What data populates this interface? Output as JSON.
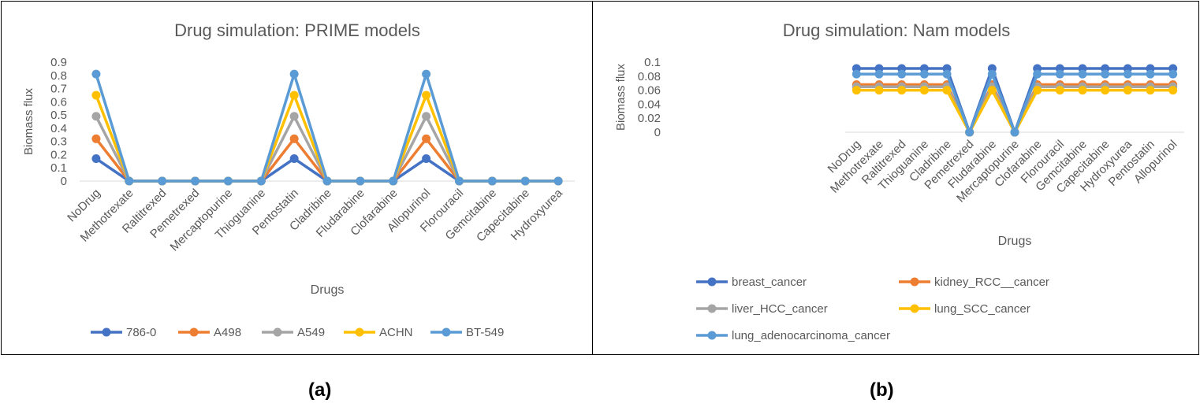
{
  "chart_data": [
    {
      "type": "line",
      "title": "Drug  simulation: PRIME models",
      "xlabel": "Drugs",
      "ylabel": "Biomass flux",
      "ylim": [
        0,
        0.9
      ],
      "yticks": [
        "0",
        "0.1",
        "0.2",
        "0.3",
        "0.4",
        "0.5",
        "0.6",
        "0.7",
        "0.8",
        "0.9"
      ],
      "grid": false,
      "legend_position": "bottom",
      "categories": [
        "NoDrug",
        "Methotrexate",
        "Raltitrexed",
        "Pemetrexed",
        "Mercaptopurine",
        "Thioguanine",
        "Pentostatin",
        "Cladribine",
        "Fludarabine",
        "Clofarabine",
        "Allopurinol",
        "Florouracil",
        "Gemcitabine",
        "Capecitabine",
        "Hydroxyurea"
      ],
      "series": [
        {
          "name": "786-0",
          "color": "#4472C4",
          "values": [
            0.17,
            0,
            0,
            0,
            0,
            0,
            0.17,
            0,
            0,
            0,
            0.17,
            0,
            0,
            0,
            0
          ]
        },
        {
          "name": "A498",
          "color": "#ED7D31",
          "values": [
            0.32,
            0,
            0,
            0,
            0,
            0,
            0.32,
            0,
            0,
            0,
            0.32,
            0,
            0,
            0,
            0
          ]
        },
        {
          "name": "A549",
          "color": "#A5A5A5",
          "values": [
            0.49,
            0,
            0,
            0,
            0,
            0,
            0.49,
            0,
            0,
            0,
            0.49,
            0,
            0,
            0,
            0
          ]
        },
        {
          "name": "ACHN",
          "color": "#FFC000",
          "values": [
            0.65,
            0,
            0,
            0,
            0,
            0,
            0.65,
            0,
            0,
            0,
            0.65,
            0,
            0,
            0,
            0
          ]
        },
        {
          "name": "BT-549",
          "color": "#5B9BD5",
          "values": [
            0.81,
            0,
            0,
            0,
            0,
            0,
            0.81,
            0,
            0,
            0,
            0.81,
            0,
            0,
            0,
            0
          ]
        }
      ]
    },
    {
      "type": "line",
      "title": "Drug simulation: Nam models",
      "xlabel": "Drugs",
      "ylabel": "Biomass flux",
      "ylim": [
        0,
        0.1
      ],
      "yticks": [
        "0",
        "0.02",
        "0.04",
        "0.06",
        "0.08",
        "0.1"
      ],
      "grid": false,
      "legend_position": "bottom",
      "categories": [
        "NoDrug",
        "Methotrexate",
        "Raltitrexed",
        "Thioguanine",
        "Cladribine",
        "Pemetrexed",
        "Fludarabine",
        "Mercaptopurine",
        "Clofarabine",
        "Florouracil",
        "Gemcitabine",
        "Capecitabine",
        "Hydroxyurea",
        "Pentostatin",
        "Allopurinol"
      ],
      "series": [
        {
          "name": "breast_cancer",
          "color": "#4472C4",
          "values": [
            0.091,
            0.091,
            0.091,
            0.091,
            0.091,
            0,
            0.091,
            0,
            0.091,
            0.091,
            0.091,
            0.091,
            0.091,
            0.091,
            0.091
          ]
        },
        {
          "name": "kidney_RCC__cancer",
          "color": "#ED7D31",
          "values": [
            0.068,
            0.068,
            0.068,
            0.068,
            0.068,
            0,
            0.068,
            0,
            0.068,
            0.068,
            0.068,
            0.068,
            0.068,
            0.068,
            0.068
          ]
        },
        {
          "name": "liver_HCC_cancer",
          "color": "#A5A5A5",
          "values": [
            0.065,
            0.065,
            0.065,
            0.065,
            0.065,
            0,
            0.065,
            0,
            0.065,
            0.065,
            0.065,
            0.065,
            0.065,
            0.065,
            0.065
          ]
        },
        {
          "name": "lung_SCC_cancer",
          "color": "#FFC000",
          "values": [
            0.06,
            0.06,
            0.06,
            0.06,
            0.06,
            0,
            0.06,
            0,
            0.06,
            0.06,
            0.06,
            0.06,
            0.06,
            0.06,
            0.06
          ]
        },
        {
          "name": "lung_adenocarcinoma_cancer",
          "color": "#5B9BD5",
          "values": [
            0.083,
            0.083,
            0.083,
            0.083,
            0.083,
            0,
            0.083,
            0,
            0.083,
            0.083,
            0.083,
            0.083,
            0.083,
            0.083,
            0.083
          ]
        }
      ]
    }
  ],
  "panel_labels": {
    "a": "(a)",
    "b": "(b)"
  }
}
